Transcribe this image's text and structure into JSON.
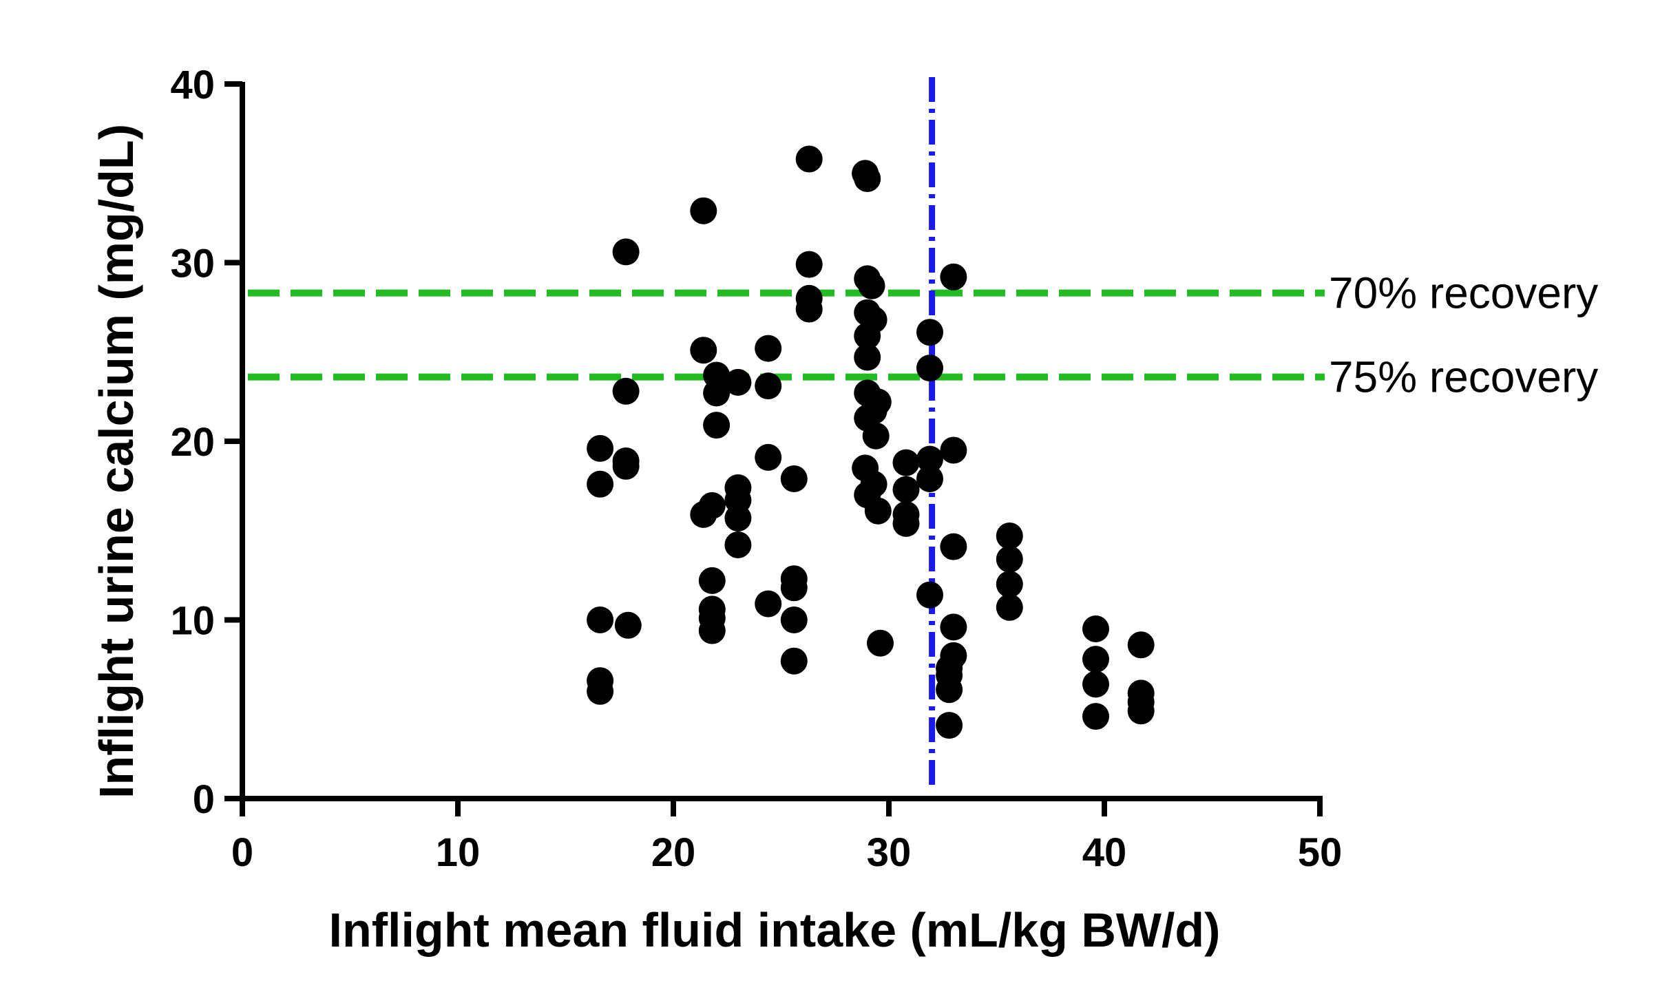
{
  "chart_data": {
    "type": "scatter",
    "xlabel": "Inflight mean fluid intake (mL/kg BW/d)",
    "ylabel": "Inflight urine calcium (mg/dL)",
    "xlim": [
      0,
      50
    ],
    "ylim": [
      0,
      40
    ],
    "x_ticks": [
      0,
      10,
      20,
      30,
      40,
      50
    ],
    "y_ticks": [
      0,
      10,
      20,
      30,
      40
    ],
    "x_tick_labels": [
      "0",
      "10",
      "20",
      "30",
      "40",
      "50"
    ],
    "y_tick_labels": [
      "0",
      "10",
      "20",
      "30",
      "40"
    ],
    "grid": false,
    "point_color": "#000000",
    "reference_lines": [
      {
        "orientation": "horizontal",
        "value": 28.3,
        "label": "70% recovery",
        "color": "#22bb22",
        "style": "dashed"
      },
      {
        "orientation": "horizontal",
        "value": 23.6,
        "label": "75% recovery",
        "color": "#22bb22",
        "style": "dashed"
      },
      {
        "orientation": "vertical",
        "value": 32.0,
        "label": "",
        "color": "#1a1aee",
        "style": "dash-dot"
      }
    ],
    "points": [
      [
        16.6,
        19.6
      ],
      [
        16.6,
        17.6
      ],
      [
        16.6,
        10.0
      ],
      [
        16.6,
        6.6
      ],
      [
        16.6,
        6.0
      ],
      [
        17.8,
        30.6
      ],
      [
        17.8,
        22.8
      ],
      [
        17.8,
        18.9
      ],
      [
        17.8,
        18.6
      ],
      [
        17.9,
        9.7
      ],
      [
        21.4,
        32.9
      ],
      [
        21.4,
        25.1
      ],
      [
        21.4,
        15.9
      ],
      [
        21.8,
        16.4
      ],
      [
        21.8,
        12.2
      ],
      [
        21.8,
        10.6
      ],
      [
        21.8,
        10.1
      ],
      [
        21.8,
        9.4
      ],
      [
        22.0,
        23.7
      ],
      [
        22.0,
        22.7
      ],
      [
        22.0,
        20.9
      ],
      [
        23.0,
        23.3
      ],
      [
        23.0,
        17.4
      ],
      [
        23.0,
        16.7
      ],
      [
        23.0,
        15.7
      ],
      [
        23.0,
        14.2
      ],
      [
        24.4,
        25.2
      ],
      [
        24.4,
        23.1
      ],
      [
        24.4,
        19.1
      ],
      [
        24.4,
        10.9
      ],
      [
        25.6,
        17.9
      ],
      [
        25.6,
        12.3
      ],
      [
        25.6,
        11.8
      ],
      [
        25.6,
        10.0
      ],
      [
        25.6,
        7.7
      ],
      [
        26.3,
        35.8
      ],
      [
        26.3,
        29.9
      ],
      [
        26.3,
        28.0
      ],
      [
        26.3,
        27.4
      ],
      [
        28.9,
        35.0
      ],
      [
        29.0,
        34.7
      ],
      [
        29.0,
        29.1
      ],
      [
        29.2,
        28.7
      ],
      [
        29.0,
        27.2
      ],
      [
        29.3,
        26.8
      ],
      [
        29.0,
        25.9
      ],
      [
        29.0,
        24.7
      ],
      [
        29.0,
        22.7
      ],
      [
        29.3,
        21.7
      ],
      [
        29.0,
        21.3
      ],
      [
        29.5,
        22.2
      ],
      [
        29.4,
        20.3
      ],
      [
        28.9,
        18.5
      ],
      [
        29.3,
        17.6
      ],
      [
        29.0,
        17.0
      ],
      [
        29.5,
        16.1
      ],
      [
        29.6,
        8.7
      ],
      [
        30.8,
        18.8
      ],
      [
        30.8,
        17.3
      ],
      [
        30.8,
        15.9
      ],
      [
        30.8,
        15.4
      ],
      [
        31.9,
        26.1
      ],
      [
        31.9,
        24.1
      ],
      [
        31.9,
        19.0
      ],
      [
        31.9,
        17.9
      ],
      [
        31.9,
        11.4
      ],
      [
        33.0,
        29.2
      ],
      [
        33.0,
        19.5
      ],
      [
        33.0,
        14.1
      ],
      [
        33.0,
        9.6
      ],
      [
        33.0,
        8.0
      ],
      [
        32.8,
        7.3
      ],
      [
        32.8,
        6.9
      ],
      [
        32.8,
        6.1
      ],
      [
        32.8,
        4.1
      ],
      [
        35.6,
        14.7
      ],
      [
        35.6,
        13.4
      ],
      [
        35.6,
        12.0
      ],
      [
        35.6,
        10.7
      ],
      [
        39.6,
        9.5
      ],
      [
        39.6,
        7.8
      ],
      [
        39.6,
        6.4
      ],
      [
        39.6,
        4.6
      ],
      [
        41.7,
        8.6
      ],
      [
        41.7,
        5.9
      ],
      [
        41.7,
        5.4
      ],
      [
        41.7,
        4.9
      ]
    ]
  }
}
